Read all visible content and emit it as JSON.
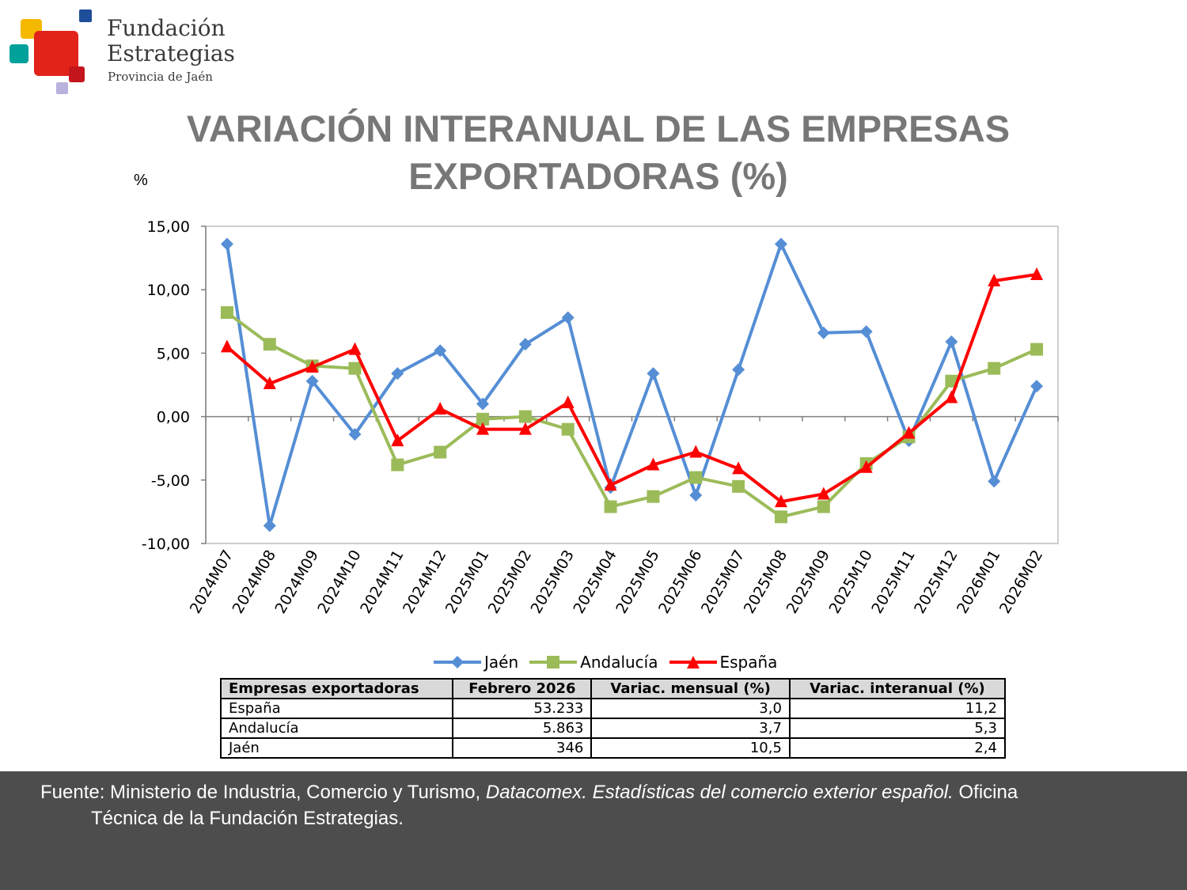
{
  "logo": {
    "line1": "Fundación",
    "line2": "Estrategias",
    "line3": "Provincia de Jaén"
  },
  "title_line1": "VARIACIÓN INTERANUAL DE LAS EMPRESAS",
  "title_line2": "EXPORTADORAS (%)",
  "unit_label": "%",
  "colors": {
    "jaen": "#558ed5",
    "andalucia": "#9bbb59",
    "espana": "#ff0000",
    "title": "#777777",
    "footer": "#4d4d4d"
  },
  "chart_data": {
    "type": "line",
    "categories": [
      "2024M07",
      "2024M08",
      "2024M09",
      "2024M10",
      "2024M11",
      "2024M12",
      "2025M01",
      "2025M02",
      "2025M03",
      "2025M04",
      "2025M05",
      "2025M06",
      "2025M07",
      "2025M08",
      "2025M09",
      "2025M10",
      "2025M11",
      "2025M12",
      "2026M01",
      "2026M02"
    ],
    "series": [
      {
        "name": "Jaén",
        "marker": "diamond",
        "color": "#558ed5",
        "values": [
          13.6,
          -8.6,
          2.8,
          -1.4,
          3.4,
          5.2,
          1.0,
          5.7,
          7.8,
          -5.6,
          3.4,
          -6.2,
          3.7,
          13.6,
          6.6,
          6.7,
          -1.9,
          5.9,
          -5.1,
          2.4
        ]
      },
      {
        "name": "Andalucía",
        "marker": "square",
        "color": "#9bbb59",
        "values": [
          8.2,
          5.7,
          4.0,
          3.8,
          -3.8,
          -2.8,
          -0.2,
          0.0,
          -1.0,
          -7.1,
          -6.3,
          -4.8,
          -5.5,
          -7.9,
          -7.1,
          -3.7,
          -1.6,
          2.8,
          3.8,
          5.3
        ]
      },
      {
        "name": "España",
        "marker": "triangle",
        "color": "#ff0000",
        "values": [
          5.5,
          2.6,
          3.9,
          5.3,
          -1.9,
          0.6,
          -1.0,
          -1.0,
          1.1,
          -5.4,
          -3.8,
          -2.8,
          -4.1,
          -6.7,
          -6.1,
          -4.0,
          -1.3,
          1.5,
          10.7,
          11.2
        ]
      }
    ],
    "y_ticks": [
      "15,00",
      "10,00",
      "5,00",
      "0,00",
      "-5,00",
      "-10,00"
    ],
    "ylim": [
      -10,
      15
    ],
    "ylabel": "%",
    "grid": false,
    "legend_position": "bottom"
  },
  "table": {
    "headers": [
      "Empresas exportadoras",
      "Febrero 2026",
      "Variac. mensual (%)",
      "Variac. interanual (%)"
    ],
    "rows": [
      {
        "name": "España",
        "value": "53.233",
        "mensual": "3,0",
        "interanual": "11,2"
      },
      {
        "name": "Andalucía",
        "value": "5.863",
        "mensual": "3,7",
        "interanual": "5,3"
      },
      {
        "name": "Jaén",
        "value": "346",
        "mensual": "10,5",
        "interanual": "2,4"
      }
    ]
  },
  "footer": {
    "prefix": "Fuente: Ministerio de Industria, Comercio y Turismo, ",
    "italic": "Datacomex. Estadísticas del comercio exterior español.",
    "suffix": "  Oficina",
    "line2": "Técnica de la Fundación Estrategias."
  }
}
